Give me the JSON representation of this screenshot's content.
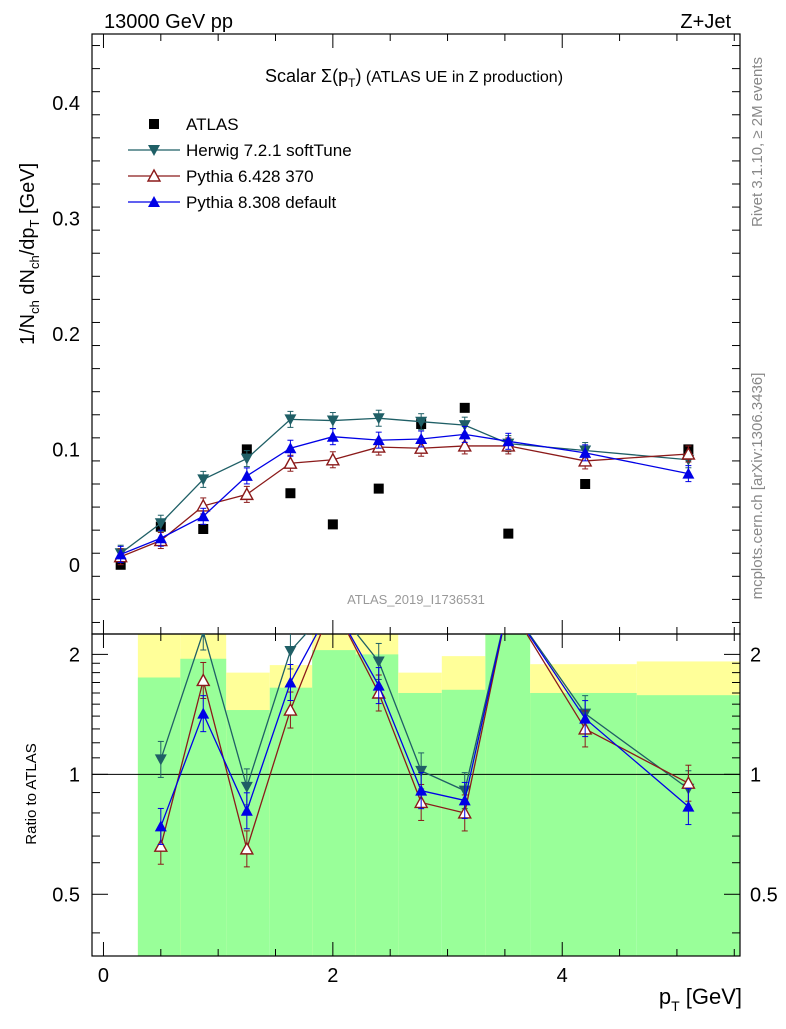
{
  "header": {
    "energy": "13000 GeV pp",
    "process": "Z+Jet"
  },
  "title": {
    "scalar": "Scalar ",
    "sigma": "Σ(p",
    "sub": "T",
    "close": ")",
    "rest": " (ATLAS UE in Z production)"
  },
  "side_labels": {
    "rivet": "Rivet 3.1.10, ≥ 2M events",
    "mcplots": "mcplots.cern.ch [arXiv:1306.3436]"
  },
  "analysis_id": "ATLAS_2019_I1736531",
  "axes": {
    "ylabel_main": {
      "a": "1/N",
      "b": "ch",
      "c": " dN",
      "d": "ch",
      "e": "/dp",
      "f": "T",
      "g": " [GeV]"
    },
    "ylabel_ratio": "Ratio to ATLAS",
    "xlabel": {
      "p": "p",
      "sub": "T",
      "unit": " [GeV]"
    },
    "xticks": [
      "0",
      "2",
      "4"
    ],
    "yticks_main": [
      "0",
      "0.1",
      "0.2",
      "0.3",
      "0.4"
    ],
    "yticks_ratio": [
      "0.5",
      "1",
      "2"
    ]
  },
  "colors": {
    "data": "#000000",
    "herwig": "#1f5f66",
    "pythia6": "#8b1a1a",
    "pythia8": "#0000e6",
    "band_inner": "#99ff99",
    "band_outer": "#ffff99"
  },
  "chart_data": {
    "type": "scatter",
    "xlim": [
      -0.1,
      5.55
    ],
    "ylim_main": [
      -0.06,
      0.46
    ],
    "ylim_ratio": [
      0.35,
      2.25
    ],
    "ratio_scale": "log",
    "legend_placement": "top-left",
    "x": [
      0.15,
      0.5,
      0.87,
      1.25,
      1.63,
      2.0,
      2.4,
      2.77,
      3.15,
      3.53,
      4.2,
      5.1
    ],
    "series": [
      {
        "name": "ATLAS",
        "marker": "square",
        "values": [
          0.0,
          0.033,
          0.031,
          0.1,
          0.062,
          0.035,
          0.066,
          0.122,
          0.136,
          0.027,
          0.07,
          0.1
        ]
      },
      {
        "name": "Herwig 7.2.1 softTune",
        "marker": "triangle-down",
        "values": [
          0.01,
          0.036,
          0.074,
          0.092,
          0.126,
          0.125,
          0.127,
          0.124,
          0.121,
          0.105,
          0.099,
          0.091
        ]
      },
      {
        "name": "Pythia 6.428 370",
        "marker": "triangle-up-open",
        "values": [
          0.007,
          0.021,
          0.051,
          0.061,
          0.088,
          0.091,
          0.102,
          0.101,
          0.103,
          0.103,
          0.09,
          0.096
        ]
      },
      {
        "name": "Pythia 8.308 default",
        "marker": "triangle-up",
        "values": [
          0.009,
          0.023,
          0.042,
          0.077,
          0.101,
          0.111,
          0.108,
          0.109,
          0.113,
          0.107,
          0.097,
          0.079
        ]
      }
    ],
    "ratio": {
      "x": [
        0.5,
        0.87,
        1.25,
        1.63,
        2.4,
        2.77,
        3.15,
        4.2,
        5.1
      ],
      "series": [
        {
          "name": "Herwig 7.2.1 softTune",
          "values": [
            1.09,
            2.3,
            0.93,
            2.04,
            1.92,
            1.02,
            0.91,
            1.42,
            0.92
          ]
        },
        {
          "name": "Pythia 6.428 370",
          "values": [
            0.66,
            1.72,
            0.65,
            1.45,
            1.6,
            0.85,
            0.8,
            1.3,
            0.95
          ]
        },
        {
          "name": "Pythia 8.308 default",
          "values": [
            0.74,
            1.42,
            0.81,
            1.7,
            1.67,
            0.91,
            0.86,
            1.38,
            0.83
          ]
        }
      ]
    },
    "bands": {
      "x_edges": [
        0.3,
        0.67,
        1.07,
        1.45,
        1.82,
        2.2,
        2.57,
        2.95,
        3.33,
        3.72,
        4.65,
        5.55
      ],
      "inner_low": [
        0.35,
        0.35,
        0.35,
        0.35,
        0.35,
        0.35,
        0.35,
        0.35,
        0.35,
        0.35,
        0.35
      ],
      "inner_high": [
        1.75,
        1.95,
        1.45,
        1.65,
        2.05,
        2.0,
        1.6,
        1.63,
        2.25,
        1.6,
        1.58
      ],
      "outer_low": [
        0.35,
        0.35,
        0.66,
        0.46,
        0.35,
        0.35,
        0.68,
        0.51,
        0.35,
        0.6,
        0.57
      ],
      "outer_high": [
        2.25,
        2.25,
        1.8,
        1.88,
        2.25,
        2.25,
        1.8,
        1.98,
        2.25,
        1.89,
        1.92
      ]
    }
  },
  "legend": [
    {
      "label": "ATLAS",
      "marker": "square"
    },
    {
      "label": "Herwig 7.2.1 softTune",
      "marker": "triangle-down"
    },
    {
      "label": "Pythia 6.428 370",
      "marker": "triangle-up-open"
    },
    {
      "label": "Pythia 8.308 default",
      "marker": "triangle-up"
    }
  ]
}
